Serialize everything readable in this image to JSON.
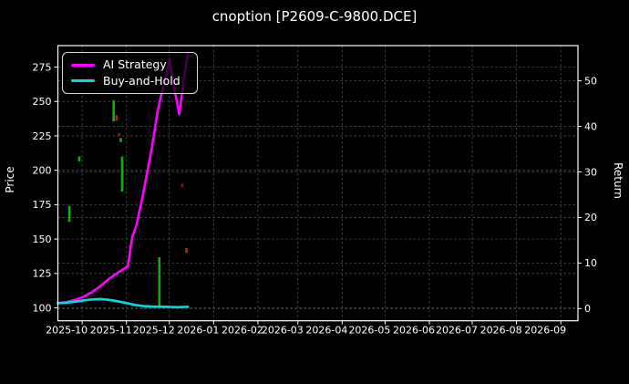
{
  "colors": {
    "background": "#000000",
    "foreground": "#ffffff",
    "grid": "#4c4c4c",
    "spine": "#ffffff",
    "ai_strategy": "#ff00ff",
    "buy_and_hold": "#00dcdc"
  },
  "chart_data": {
    "type": "line",
    "title": "cnoption [P2609-C-9800.DCE]",
    "xlabel": "",
    "ylabel_left": "Price",
    "ylabel_right": "Return",
    "grid": true,
    "legend_position": "upper left",
    "x_domain": [
      "2025-09-14",
      "2026-09-13"
    ],
    "x_ticks": [
      {
        "date": "2025-10-01",
        "label": "2025-10"
      },
      {
        "date": "2025-11-01",
        "label": "2025-11"
      },
      {
        "date": "2025-12-01",
        "label": "2025-12"
      },
      {
        "date": "2026-01-01",
        "label": "2026-01"
      },
      {
        "date": "2026-02-01",
        "label": "2026-02"
      },
      {
        "date": "2026-03-01",
        "label": "2026-03"
      },
      {
        "date": "2026-04-01",
        "label": "2026-04"
      },
      {
        "date": "2026-05-01",
        "label": "2026-05"
      },
      {
        "date": "2026-06-01",
        "label": "2026-06"
      },
      {
        "date": "2026-07-01",
        "label": "2026-07"
      },
      {
        "date": "2026-08-01",
        "label": "2026-08"
      },
      {
        "date": "2026-09-01",
        "label": "2026-09"
      }
    ],
    "y_left_axis": {
      "min": 90.6,
      "max": 290.6,
      "ticks": [
        100,
        125,
        150,
        175,
        200,
        225,
        250,
        275
      ]
    },
    "y_right_axis": {
      "min": -2.68,
      "max": 57.73,
      "ticks": [
        0,
        10,
        20,
        30,
        40,
        50
      ]
    },
    "series": [
      {
        "name": "AI Strategy",
        "color": "#ff00ff",
        "axis": "right",
        "points": [
          [
            "2025-09-14",
            1.2
          ],
          [
            "2025-09-20",
            1.4
          ],
          [
            "2025-09-26",
            1.9
          ],
          [
            "2025-10-02",
            2.6
          ],
          [
            "2025-10-08",
            3.6
          ],
          [
            "2025-10-14",
            5.0
          ],
          [
            "2025-10-20",
            6.6
          ],
          [
            "2025-10-26",
            7.9
          ],
          [
            "2025-10-30",
            8.7
          ],
          [
            "2025-11-02",
            9.3
          ],
          [
            "2025-11-05",
            15.7
          ],
          [
            "2025-11-08",
            18.3
          ],
          [
            "2025-11-13",
            25.7
          ],
          [
            "2025-11-19",
            35.7
          ],
          [
            "2025-11-23",
            43.7
          ],
          [
            "2025-11-26",
            47.7
          ],
          [
            "2025-11-29",
            51.5
          ],
          [
            "2025-12-01",
            54.8
          ],
          [
            "2025-12-04",
            49.0
          ],
          [
            "2025-12-08",
            42.7
          ],
          [
            "2025-12-11",
            50.0
          ],
          [
            "2025-12-14",
            56.1
          ]
        ]
      },
      {
        "name": "Buy-and-Hold",
        "color": "#00dcdc",
        "axis": "right",
        "points": [
          [
            "2025-09-14",
            1.2
          ],
          [
            "2025-09-20",
            1.3
          ],
          [
            "2025-09-26",
            1.5
          ],
          [
            "2025-10-02",
            1.8
          ],
          [
            "2025-10-08",
            2.0
          ],
          [
            "2025-10-14",
            2.1
          ],
          [
            "2025-10-20",
            1.9
          ],
          [
            "2025-10-26",
            1.6
          ],
          [
            "2025-11-01",
            1.2
          ],
          [
            "2025-11-07",
            0.8
          ],
          [
            "2025-11-13",
            0.55
          ],
          [
            "2025-11-19",
            0.45
          ],
          [
            "2025-11-25",
            0.4
          ],
          [
            "2025-12-01",
            0.38
          ],
          [
            "2025-12-07",
            0.3
          ],
          [
            "2025-12-14",
            0.4
          ]
        ]
      }
    ],
    "candles": [
      {
        "date": "2025-09-22",
        "low": 162.5,
        "high": 174.0,
        "color": "#0faf0f"
      },
      {
        "date": "2025-09-29",
        "low": 206.5,
        "high": 210.0,
        "color": "#0faf0f"
      },
      {
        "date": "2025-10-23",
        "low": 235.5,
        "high": 251.0,
        "color": "#0faf0f"
      },
      {
        "date": "2025-10-25",
        "low": 236.0,
        "high": 240.0,
        "color": "#b22222"
      },
      {
        "date": "2025-10-27",
        "low": 225.0,
        "high": 227.0,
        "color": "#8a1a1a"
      },
      {
        "date": "2025-10-28",
        "low": 220.5,
        "high": 223.5,
        "color": "#0faf0f"
      },
      {
        "date": "2025-10-29",
        "low": 184.5,
        "high": 210.0,
        "color": "#0faf0f"
      },
      {
        "date": "2025-11-24",
        "low": 100.3,
        "high": 136.8,
        "color": "#0faf0f"
      },
      {
        "date": "2025-12-10",
        "low": 187.5,
        "high": 190.5,
        "color": "#6e1515"
      },
      {
        "date": "2025-12-13",
        "low": 140.0,
        "high": 143.5,
        "color": "#b22222"
      }
    ]
  }
}
